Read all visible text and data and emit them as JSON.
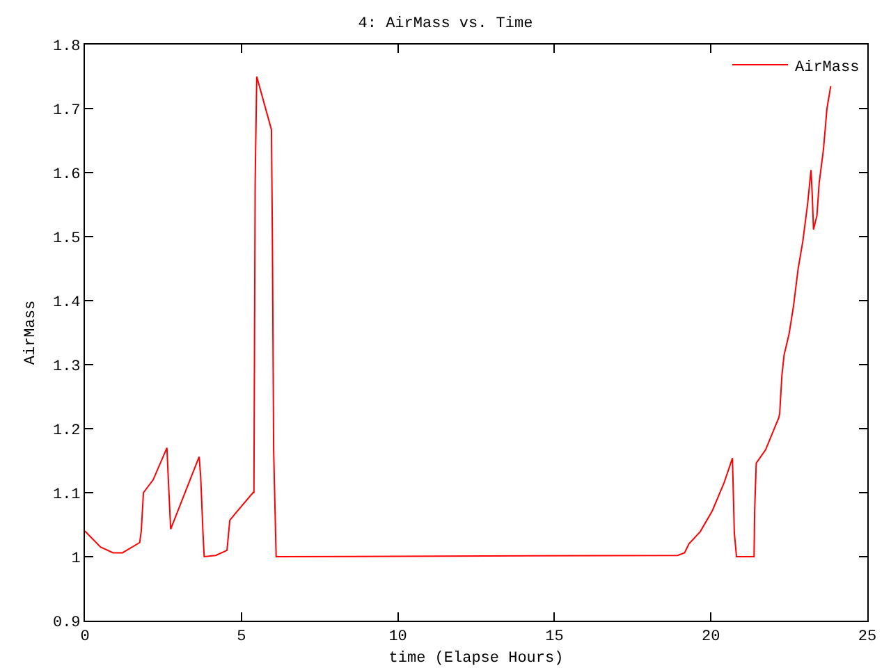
{
  "chart_data": {
    "type": "line",
    "title": "4: AirMass vs. Time",
    "xlabel": "time (Elapse Hours)",
    "ylabel": "AirMass",
    "xlim": [
      0,
      25
    ],
    "xticks": [
      0,
      5,
      10,
      15,
      20,
      25
    ],
    "ylim": [
      0.9,
      1.8
    ],
    "yticks": [
      0.9,
      1,
      1.1,
      1.2,
      1.3,
      1.4,
      1.5,
      1.6,
      1.7,
      1.8
    ],
    "grid": false,
    "legend": "top right",
    "marker": "none",
    "line_style": "solid",
    "series": [
      {
        "name": "AirMass",
        "color": "#ff0000",
        "x": [
          0,
          0.5,
          0.9,
          1.2,
          1.75,
          1.8,
          1.87,
          2.18,
          2.62,
          2.65,
          2.74,
          3.65,
          3.7,
          3.77,
          3.81,
          4.18,
          4.54,
          4.63,
          4.85,
          5.37,
          5.4,
          5.44,
          5.49,
          5.96,
          5.99,
          6.03,
          6.11,
          18.94,
          19.16,
          19.3,
          19.66,
          20.05,
          20.42,
          20.69,
          20.71,
          20.75,
          20.82,
          21.38,
          21.4,
          21.45,
          21.75,
          22.17,
          22.2,
          22.27,
          22.34,
          22.5,
          22.64,
          22.79,
          22.94,
          23.09,
          23.2,
          23.24,
          23.28,
          23.39,
          23.46,
          23.6,
          23.71,
          23.83
        ],
        "values": [
          1.04,
          1.015,
          1.006,
          1.006,
          1.022,
          1.04,
          1.1,
          1.12,
          1.17,
          1.137,
          1.043,
          1.156,
          1.124,
          1.04,
          1.0,
          1.002,
          1.01,
          1.057,
          1.07,
          1.1,
          1.1,
          1.587,
          1.75,
          1.667,
          1.5,
          1.167,
          1.0,
          1.002,
          1.006,
          1.02,
          1.039,
          1.072,
          1.115,
          1.154,
          1.115,
          1.037,
          1.0,
          1.0,
          1.072,
          1.146,
          1.167,
          1.217,
          1.224,
          1.283,
          1.315,
          1.348,
          1.391,
          1.45,
          1.493,
          1.55,
          1.604,
          1.565,
          1.511,
          1.533,
          1.583,
          1.637,
          1.7,
          1.735
        ]
      }
    ]
  }
}
